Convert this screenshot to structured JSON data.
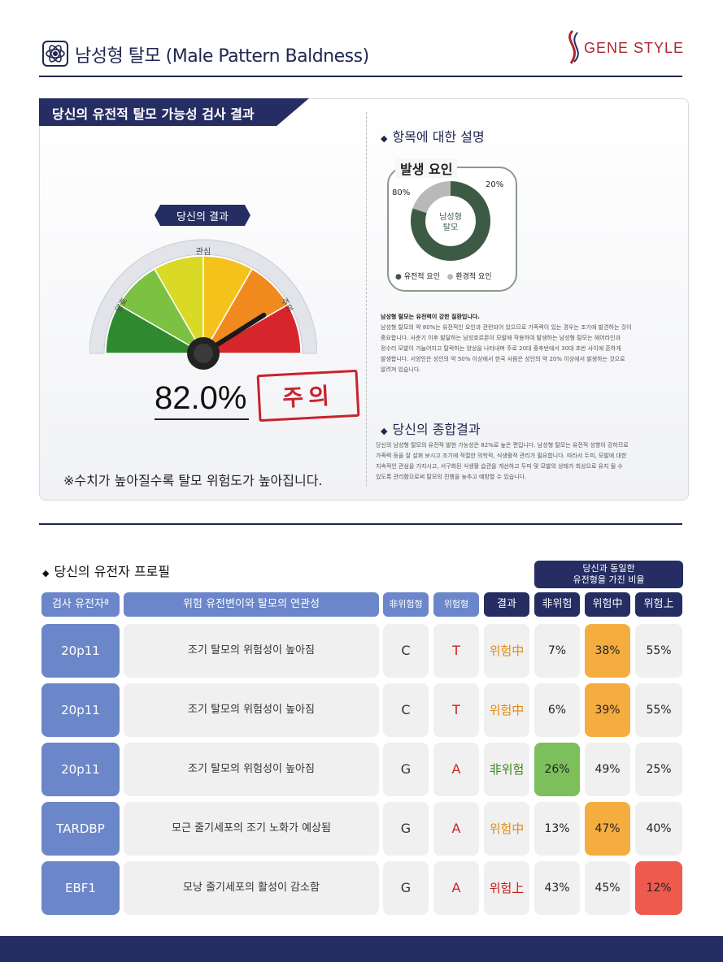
{
  "header": {
    "title": "남성형 탈모 (Male Pattern Baldness)",
    "logo_text": "GENE STYLE"
  },
  "result_panel": {
    "tab_title": "당신의 유전적 탈모 가능성 검사 결과",
    "badge": "당신의 결과",
    "gauge_labels": [
      "양호",
      "관심",
      "주의"
    ],
    "gauge_value_percent": 82.0,
    "percent_text": "82.0%",
    "stamp": "주의",
    "note": "※수치가 높아질수록 탈모 위험도가 높아집니다."
  },
  "explanation": {
    "heading": "항목에 대한 설명",
    "donut_title": "발생 요인",
    "donut_center": "남성형\n탈모",
    "genetic_pct_label": "80%",
    "env_pct_label": "20%",
    "genetic_share": 80,
    "env_share": 20,
    "legend_genetic": "유전적 요인",
    "legend_env": "환경적 요인",
    "desc_title": "남성형 탈모는 유전력이 강한 질환입니다.",
    "desc_lines": [
      "남성형 탈모의 약 80%는 유전적인 요인과 관련되어 있으므로 가족력이 있는 경우는 조기에 발견하는 것이",
      "중요합니다. 사춘기 이후 발달하는 남성호르몬이 모발에 작용하여 발생하는 남성형 탈모는 헤어라인과",
      "정수리 모발이 가늘어지고 탈락하는 양상을 나타내며 주로 20대 중후반에서 30대 초반 사이에 흔하게",
      "발생합니다. 서양인은 성인의 약 50% 이상에서 한국 사람은 성인의 약 20% 이상에서 발생하는 것으로",
      "알려져 있습니다."
    ]
  },
  "summary": {
    "heading": "당신의  종합결과",
    "lines": [
      "당신의 남성형 탈모의 유전적 발현 가능성은 82%로 높은 편입니다. 남성형 탈모는 유전적 성향이 강하므로",
      "가족력 등을 잘 살펴 보시고 조기에 적절한 의학적, 식생활적 관리가 필요합니다. 따라서 두피, 모발에 대한",
      "지속적인 관심을 가지시고, 서구화된 식생활 습관을 개선하고 두피 및 모발의 상태가 최상으로 유지 될 수",
      "있도록 관리함으로써 탈모의 진행을 늦추고 예방할 수 있습니다."
    ]
  },
  "profile": {
    "heading": "당신의 유전자 프로필",
    "ratio_heading_1": "당신과 동일한",
    "ratio_heading_2": "유전형을 가진 비율",
    "columns": [
      "검사 유전자ª",
      "위험 유전변이와 탈모의 연관성",
      "非위험형",
      "위험형",
      "결과",
      "非위험",
      "위험中",
      "위험上"
    ],
    "rows": [
      {
        "gene": "20p11",
        "desc": "조기 탈모의 위험성이 높아짐",
        "nonrisk": "C",
        "risk": "T",
        "result": "위험中",
        "p1": "7%",
        "p2": "38%",
        "p3": "55%"
      },
      {
        "gene": "20p11",
        "desc": "조기 탈모의 위험성이 높아짐",
        "nonrisk": "C",
        "risk": "T",
        "result": "위험中",
        "p1": "6%",
        "p2": "39%",
        "p3": "55%"
      },
      {
        "gene": "20p11",
        "desc": "조기 탈모의 위험성이 높아짐",
        "nonrisk": "G",
        "risk": "A",
        "result": "非위험",
        "p1": "26%",
        "p2": "49%",
        "p3": "25%"
      },
      {
        "gene": "TARDBP",
        "desc": "모근 줄기세포의 조기 노화가 예상됨",
        "nonrisk": "G",
        "risk": "A",
        "result": "위험中",
        "p1": "13%",
        "p2": "47%",
        "p3": "40%"
      },
      {
        "gene": "EBF1",
        "desc": "모낭 줄기세포의 활성이 감소함",
        "nonrisk": "G",
        "risk": "A",
        "result": "위험上",
        "p1": "43%",
        "p2": "45%",
        "p3": "12%"
      }
    ]
  },
  "colors": {
    "navy": "#262d63",
    "gene_blue": "#6b86c9",
    "highlight_orange": "#f6ad3f",
    "highlight_green": "#7dbf5a",
    "highlight_red": "#ee5a4e",
    "donut_dark": "#3d5a44",
    "donut_light": "#b9b9b9"
  }
}
